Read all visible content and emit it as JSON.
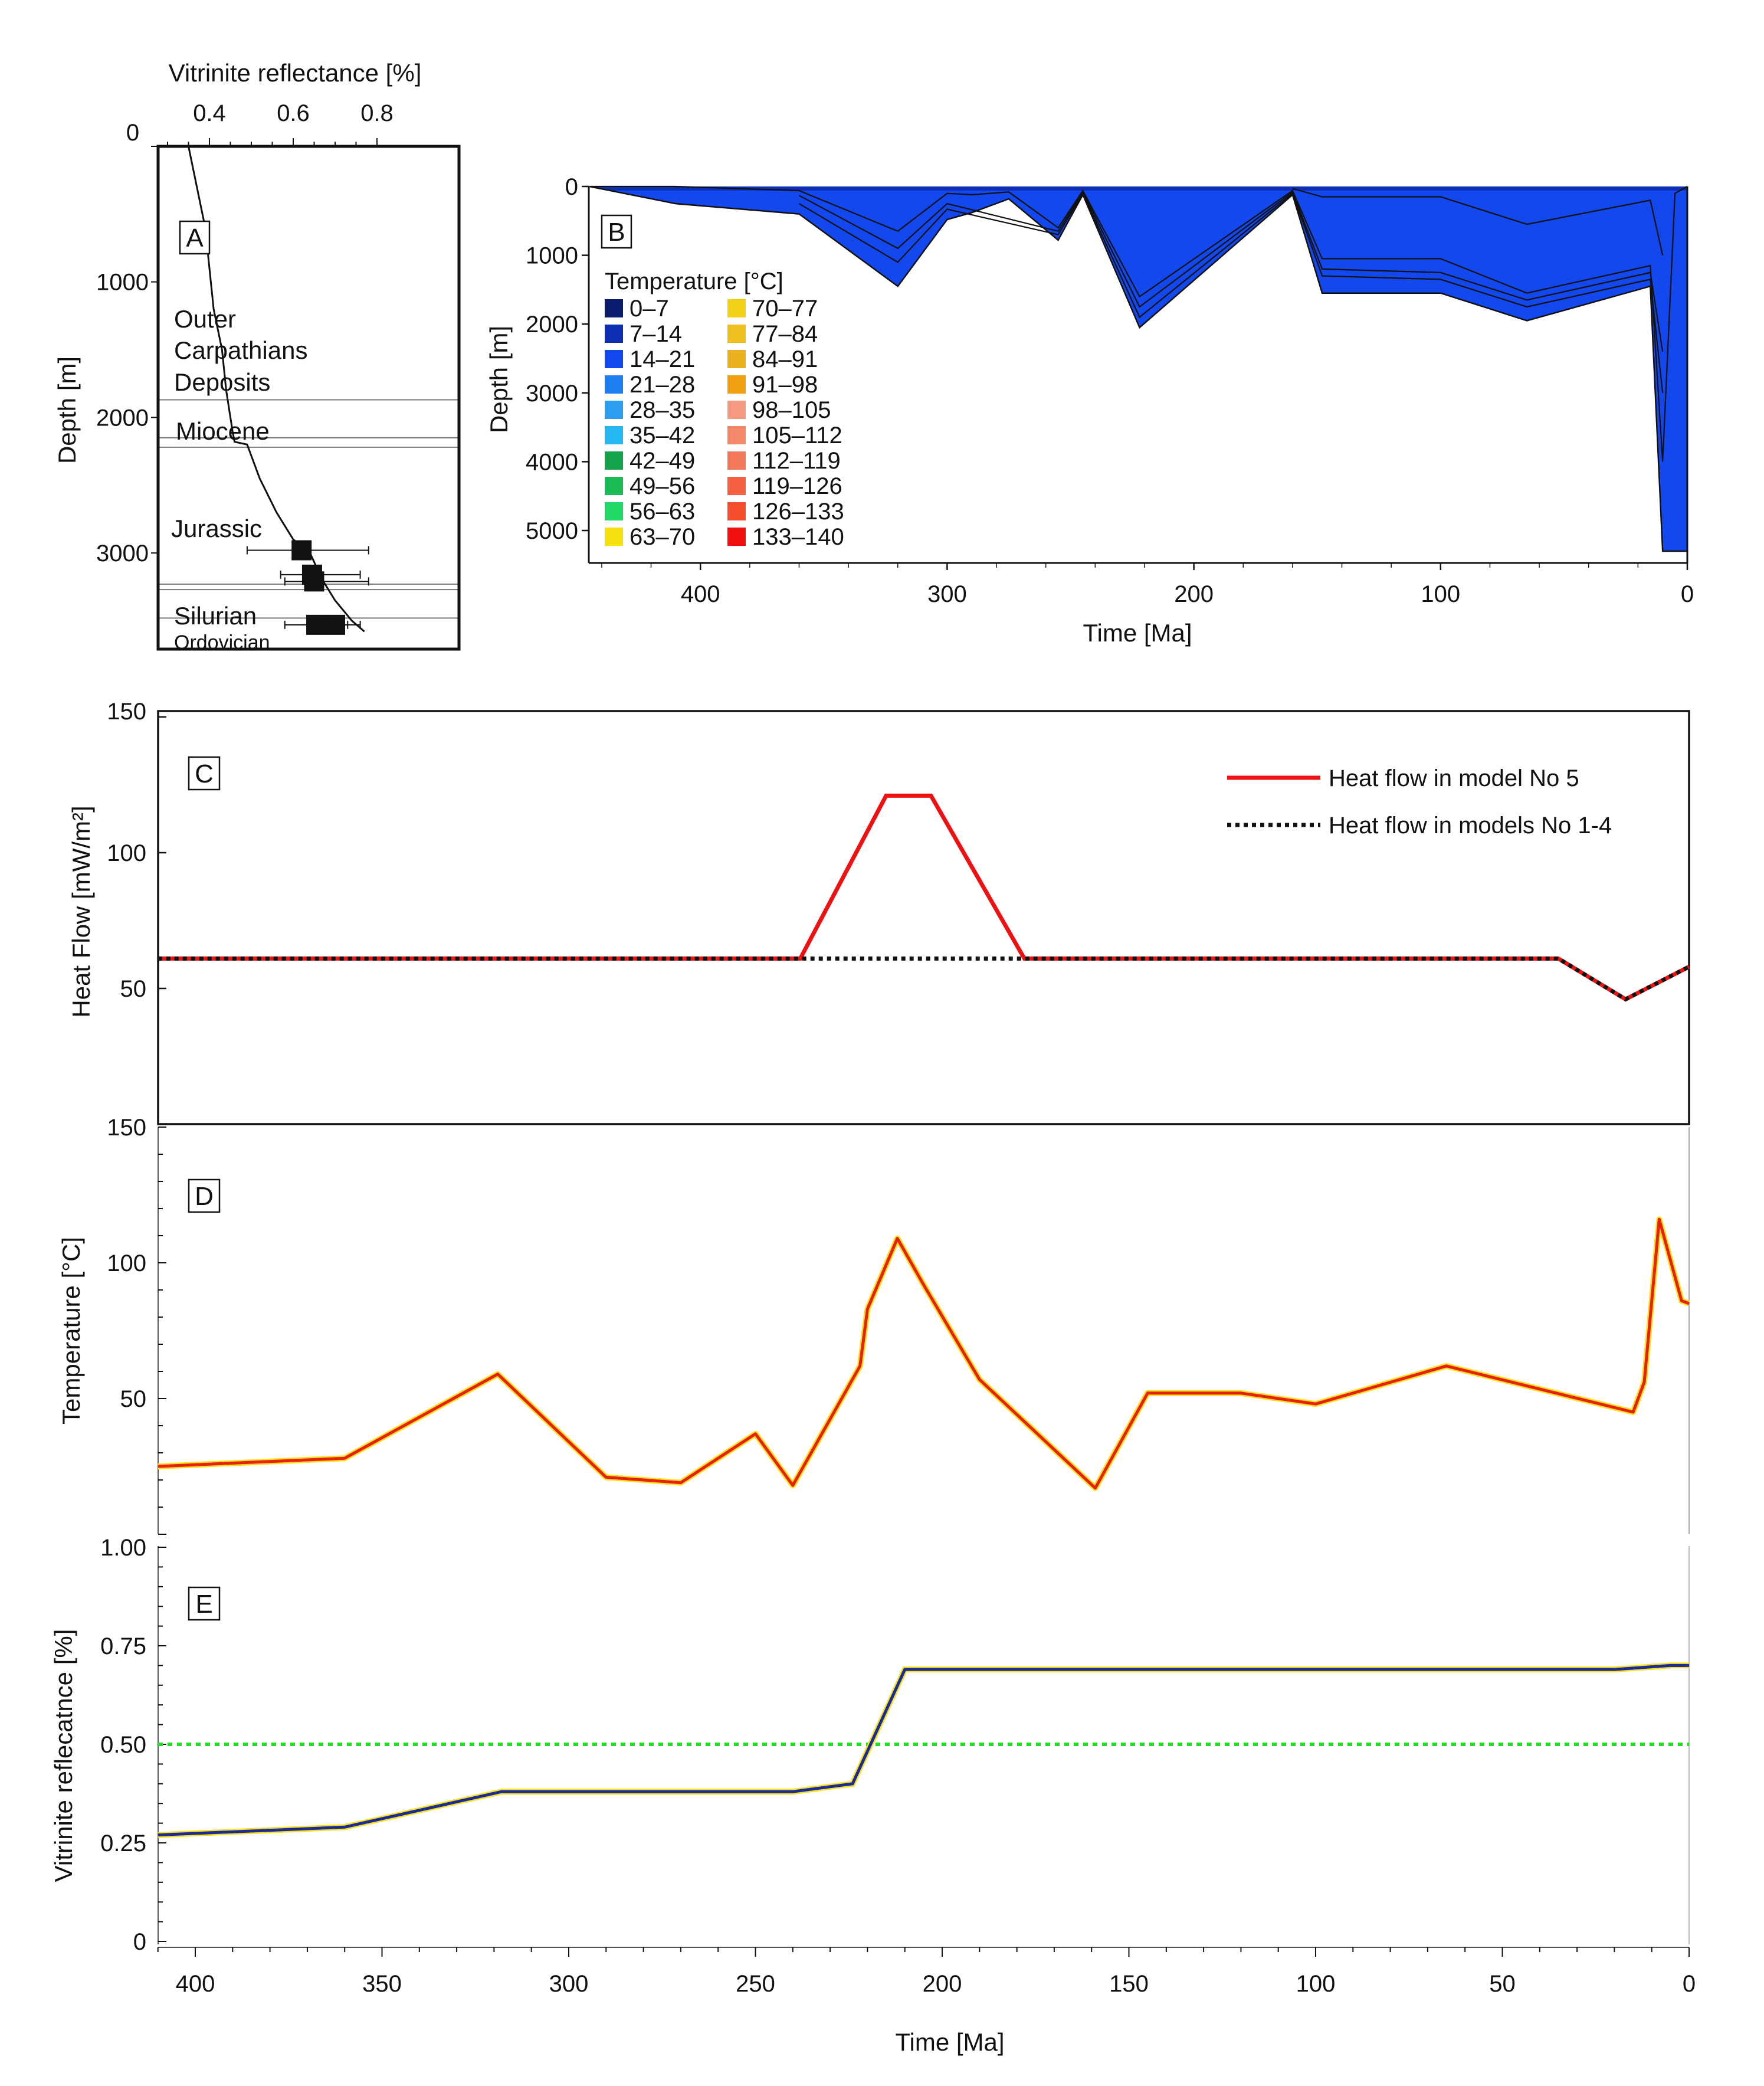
{
  "chart_data": [
    {
      "id": "A",
      "type": "line",
      "panel_label": "A",
      "title": "Vitrinite reflectance [%]",
      "ylabel": "Depth [m]",
      "x_ticks": [
        "0.4",
        "0.6",
        "0.8"
      ],
      "x_ticks_values": [
        0.4,
        0.6,
        0.8
      ],
      "y_ticks": [
        "0",
        "1000",
        "2000",
        "3000"
      ],
      "y_ticks_values": [
        0,
        1000,
        2000,
        3000
      ],
      "x_origin_label": "0",
      "ylim": [
        3600,
        0
      ],
      "curve": [
        [
          0.35,
          0
        ],
        [
          0.37,
          300
        ],
        [
          0.39,
          600
        ],
        [
          0.4,
          900
        ],
        [
          0.41,
          1200
        ],
        [
          0.43,
          1500
        ],
        [
          0.44,
          1800
        ],
        [
          0.455,
          2100
        ],
        [
          0.46,
          2180
        ],
        [
          0.49,
          2200
        ],
        [
          0.52,
          2450
        ],
        [
          0.56,
          2700
        ],
        [
          0.6,
          2900
        ],
        [
          0.64,
          3000
        ],
        [
          0.67,
          3200
        ],
        [
          0.7,
          3350
        ],
        [
          0.74,
          3500
        ],
        [
          0.77,
          3580
        ]
      ],
      "measurements": [
        {
          "vr": 0.62,
          "depth": 2980,
          "err": [
            0.49,
            0.78
          ]
        },
        {
          "vr": 0.645,
          "depth": 3160,
          "err": [
            0.57,
            0.76
          ]
        },
        {
          "vr": 0.65,
          "depth": 3210,
          "err": [
            0.58,
            0.78
          ]
        },
        {
          "vr": 0.655,
          "depth": 3530,
          "err": [
            0.58,
            0.73
          ]
        },
        {
          "vr": 0.7,
          "depth": 3530,
          "err": [
            0.64,
            0.76
          ]
        }
      ],
      "strata": [
        {
          "name_lines": [
            "Outer",
            "Carpathians",
            "Deposits"
          ]
        },
        {
          "name_lines": [
            "Miocene"
          ]
        },
        {
          "name_lines": [
            "Jurassic"
          ]
        },
        {
          "name_lines": [
            "Silurian"
          ]
        },
        {
          "name_lines": [
            "Ordovician"
          ]
        }
      ],
      "boundaries_m": [
        1870,
        2150,
        2220,
        3230,
        3270,
        3480
      ]
    },
    {
      "id": "B",
      "type": "heatmap",
      "panel_label": "B",
      "xlabel": "Time [Ma]",
      "ylabel": "Depth [m]",
      "x_ticks": [
        "400",
        "300",
        "200",
        "100",
        "0"
      ],
      "x_ticks_values": [
        400,
        300,
        200,
        100,
        0
      ],
      "y_ticks": [
        "0",
        "1000",
        "2000",
        "3000",
        "4000",
        "5000"
      ],
      "y_ticks_values": [
        0,
        1000,
        2000,
        3000,
        4000,
        5000
      ],
      "xlim": [
        445,
        0
      ],
      "ylim": [
        5500,
        0
      ],
      "legend_title": "Temperature [°C]",
      "legend": [
        {
          "range": "0–7",
          "color": "#0a1d6e"
        },
        {
          "range": "7–14",
          "color": "#0d2fb4"
        },
        {
          "range": "14–21",
          "color": "#1248ee"
        },
        {
          "range": "21–28",
          "color": "#1e7ff2"
        },
        {
          "range": "28–35",
          "color": "#2e9ef2"
        },
        {
          "range": "35–42",
          "color": "#26b8f0"
        },
        {
          "range": "42–49",
          "color": "#14a24a"
        },
        {
          "range": "49–56",
          "color": "#1bbc55"
        },
        {
          "range": "56–63",
          "color": "#22d866"
        },
        {
          "range": "63–70",
          "color": "#f7e010"
        },
        {
          "range": "70–77",
          "color": "#f5d21a"
        },
        {
          "range": "77–84",
          "color": "#f0c020"
        },
        {
          "range": "84–91",
          "color": "#ebb020"
        },
        {
          "range": "91–98",
          "color": "#f0a010"
        },
        {
          "range": "98–105",
          "color": "#f59a80"
        },
        {
          "range": "105–112",
          "color": "#f48a6a"
        },
        {
          "range": "112–119",
          "color": "#f27a5a"
        },
        {
          "range": "119–126",
          "color": "#f46040"
        },
        {
          "range": "126–133",
          "color": "#f54e2e"
        },
        {
          "range": "133–140",
          "color": "#f01010"
        }
      ],
      "basement_depth": [
        [
          445,
          0
        ],
        [
          410,
          250
        ],
        [
          360,
          400
        ],
        [
          320,
          1450
        ],
        [
          300,
          480
        ],
        [
          290,
          380
        ],
        [
          275,
          180
        ],
        [
          255,
          780
        ],
        [
          245,
          120
        ],
        [
          222,
          2050
        ],
        [
          160,
          120
        ],
        [
          148,
          1550
        ],
        [
          100,
          1550
        ],
        [
          65,
          1950
        ],
        [
          15,
          1450
        ],
        [
          10,
          5300
        ],
        [
          0,
          5300
        ]
      ],
      "sediment_surface": [
        [
          445,
          0
        ],
        [
          410,
          0
        ],
        [
          360,
          60
        ],
        [
          320,
          650
        ],
        [
          300,
          100
        ],
        [
          290,
          120
        ],
        [
          275,
          80
        ],
        [
          255,
          600
        ],
        [
          245,
          60
        ],
        [
          222,
          1600
        ],
        [
          160,
          60
        ],
        [
          148,
          1050
        ],
        [
          100,
          1050
        ],
        [
          65,
          1550
        ],
        [
          15,
          1150
        ],
        [
          10,
          4000
        ],
        [
          5,
          100
        ],
        [
          0,
          0
        ]
      ],
      "layer_boundaries": [
        [
          [
            360,
            130
          ],
          [
            320,
            900
          ],
          [
            300,
            250
          ],
          [
            255,
            650
          ],
          [
            245,
            80
          ],
          [
            222,
            1750
          ],
          [
            160,
            80
          ],
          [
            148,
            1200
          ],
          [
            100,
            1250
          ],
          [
            65,
            1650
          ],
          [
            15,
            1250
          ],
          [
            10,
            2400
          ]
        ],
        [
          [
            360,
            250
          ],
          [
            320,
            1100
          ],
          [
            300,
            330
          ],
          [
            255,
            700
          ],
          [
            245,
            100
          ],
          [
            222,
            1900
          ],
          [
            160,
            100
          ],
          [
            148,
            1300
          ],
          [
            100,
            1350
          ],
          [
            65,
            1750
          ],
          [
            15,
            1350
          ],
          [
            10,
            3000
          ]
        ],
        [
          [
            160,
            30
          ],
          [
            148,
            150
          ],
          [
            100,
            150
          ],
          [
            65,
            550
          ],
          [
            15,
            200
          ],
          [
            10,
            1000
          ]
        ]
      ]
    },
    {
      "id": "C",
      "type": "line",
      "panel_label": "C",
      "ylabel": "Heat Flow [mW/m²]",
      "y_ticks": [
        "50",
        "100",
        "150"
      ],
      "y_ticks_values": [
        50,
        100,
        150
      ],
      "xlim": [
        410,
        0
      ],
      "ylim": [
        0,
        150
      ],
      "series": [
        {
          "name": "Heat flow in model No 5",
          "color": "#ee1111",
          "style": "solid",
          "points": [
            [
              410,
              61
            ],
            [
              238,
              61
            ],
            [
              215,
              121
            ],
            [
              203,
              121
            ],
            [
              178,
              61
            ],
            [
              35,
              61
            ],
            [
              17,
              46
            ],
            [
              0,
              58
            ]
          ]
        },
        {
          "name": "Heat flow in models No 1-4",
          "color": "#111111",
          "style": "dotted",
          "points": [
            [
              410,
              61
            ],
            [
              35,
              61
            ],
            [
              17,
              46
            ],
            [
              0,
              58
            ]
          ]
        }
      ]
    },
    {
      "id": "D",
      "type": "line",
      "panel_label": "D",
      "ylabel": "Temperature [°C]",
      "y_ticks": [
        "50",
        "100",
        "150"
      ],
      "y_ticks_values": [
        50,
        100,
        150
      ],
      "xlim": [
        410,
        0
      ],
      "ylim": [
        0,
        150
      ],
      "series": [
        {
          "name": "Temperature",
          "color": "#e82010",
          "halo": "#f6e020",
          "points": [
            [
              410,
              25
            ],
            [
              360,
              28
            ],
            [
              319,
              59
            ],
            [
              290,
              21
            ],
            [
              270,
              19
            ],
            [
              250,
              37
            ],
            [
              240,
              18
            ],
            [
              222,
              62
            ],
            [
              220,
              83
            ],
            [
              212,
              109
            ],
            [
              205,
              92
            ],
            [
              190,
              57
            ],
            [
              159,
              17
            ],
            [
              145,
              52
            ],
            [
              120,
              52
            ],
            [
              100,
              48
            ],
            [
              65,
              62
            ],
            [
              15,
              45
            ],
            [
              12,
              56
            ],
            [
              8,
              116
            ],
            [
              2,
              86
            ],
            [
              0,
              85
            ]
          ]
        }
      ]
    },
    {
      "id": "E",
      "type": "line",
      "panel_label": "E",
      "xlabel": "Time [Ma]",
      "ylabel": "Vitrinite reflecatnce [%]",
      "x_ticks": [
        "400",
        "350",
        "300",
        "250",
        "200",
        "150",
        "100",
        "50",
        "0"
      ],
      "x_ticks_values": [
        400,
        350,
        300,
        250,
        200,
        150,
        100,
        50,
        0
      ],
      "y_ticks": [
        "0",
        "0.25",
        "0.50",
        "0.75",
        "1.00"
      ],
      "y_ticks_values": [
        0,
        0.25,
        0.5,
        0.75,
        1.0
      ],
      "xlim": [
        410,
        0
      ],
      "ylim": [
        0,
        1.0
      ],
      "threshold": {
        "value": 0.5,
        "color": "#22dd22"
      },
      "series": [
        {
          "name": "Vitrinite reflectance",
          "color": "#1a2a9a",
          "halo": "#f6e020",
          "points": [
            [
              410,
              0.27
            ],
            [
              360,
              0.29
            ],
            [
              318,
              0.38
            ],
            [
              240,
              0.38
            ],
            [
              224,
              0.4
            ],
            [
              210,
              0.69
            ],
            [
              20,
              0.69
            ],
            [
              5,
              0.7
            ],
            [
              0,
              0.7
            ]
          ]
        }
      ]
    }
  ]
}
